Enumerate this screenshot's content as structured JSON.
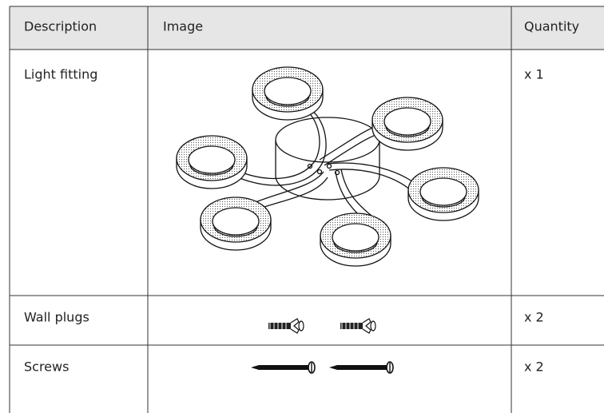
{
  "table": {
    "header": [
      "Description",
      "Image",
      "Quantity"
    ],
    "rows": [
      {
        "description": "Light fitting",
        "quantity": "x 1"
      },
      {
        "description": "Wall plugs",
        "quantity": "x 2"
      },
      {
        "description": "Screws",
        "quantity": "x 2"
      }
    ]
  }
}
